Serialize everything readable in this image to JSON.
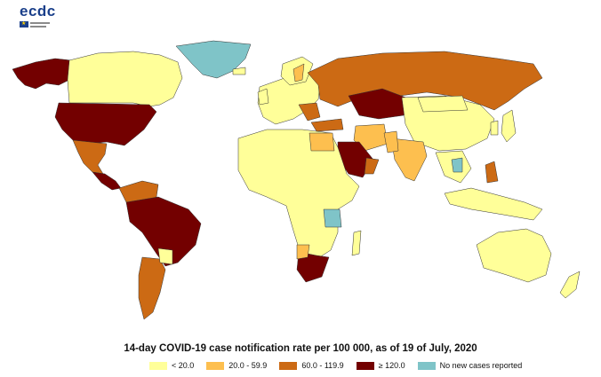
{
  "logo": {
    "text": "ecdc"
  },
  "title": "14-day COVID-19 case notification rate per 100 000, as of 19 of July, 2020",
  "legend": [
    {
      "label": "< 20.0",
      "color": "#ffff99"
    },
    {
      "label": "20.0 - 59.9",
      "color": "#fdbf4f"
    },
    {
      "label": "60.0 - 119.9",
      "color": "#cc6a14"
    },
    {
      "label": "≥ 120.0",
      "color": "#730000"
    },
    {
      "label": "No new cases reported",
      "color": "#7fc4c8"
    }
  ],
  "colors": {
    "none": "#7fc4c8",
    "low": "#ffff99",
    "mid": "#fdbf4f",
    "high": "#cc6a14",
    "vhigh": "#730000",
    "border": "#333333"
  }
}
